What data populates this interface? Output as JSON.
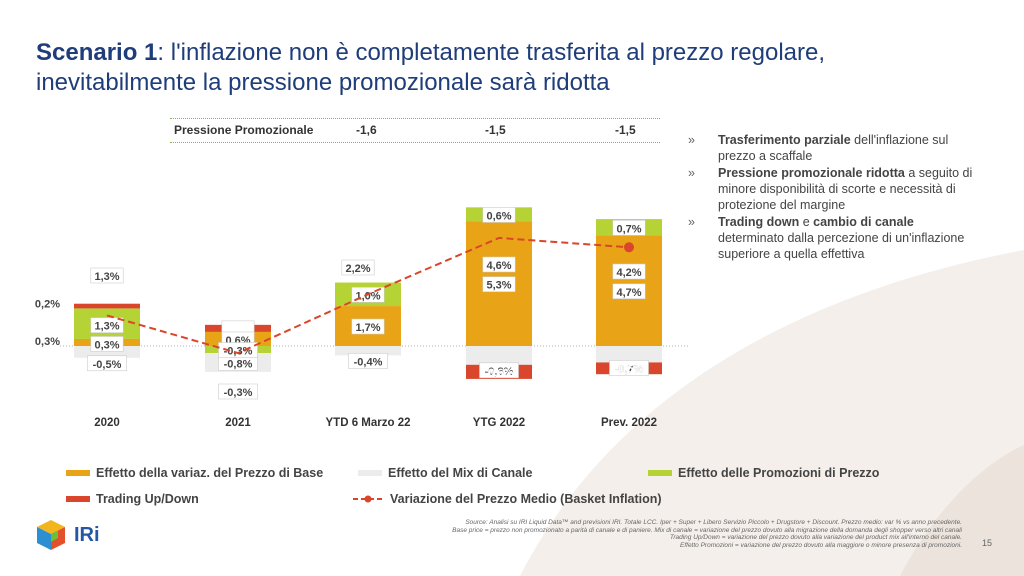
{
  "title": {
    "lead": "Scenario 1",
    "rest": ": l'inflazione non è completamente trasferita al prezzo regolare, inevitabilmente la pressione promozionale sarà ridotta"
  },
  "promo_pressure": {
    "label": "Pressione Promozionale",
    "values": [
      "-1,6",
      "-1,5",
      "-1,5"
    ]
  },
  "bullets": [
    {
      "bold": "Trasferimento parziale",
      "rest": " dell'inflazione sul prezzo a scaffale"
    },
    {
      "bold": "Pressione promozionale ridotta",
      "rest": " a seguito di minore disponibilità di scorte e necessità di protezione del margine"
    },
    {
      "bold": "Trading down",
      "rest_a": " e ",
      "bold2": "cambio di canale",
      "rest": " determinato dalla percezione di un'inflazione superiore a quella effettiva"
    }
  ],
  "bullet_mark": "»",
  "chart_data": {
    "type": "bar",
    "stacked": true,
    "categories": [
      "2020",
      "2021",
      "YTD 6 Marzo 22",
      "YTG 2022",
      "Prev. 2022"
    ],
    "series": [
      {
        "name": "Effetto della variaz. del Prezzo di Base",
        "color": "#e8a317",
        "values": [
          0.3,
          0.6,
          1.7,
          5.3,
          4.7
        ],
        "labels": [
          "0,3%",
          "0,6%",
          "1,7%",
          "5,3%",
          "4,7%"
        ]
      },
      {
        "name": "Effetto del Mix di Canale",
        "color": "#ececec",
        "values": [
          -0.5,
          -0.8,
          -0.4,
          -0.8,
          -0.7
        ],
        "labels": [
          "-0,5%",
          "-0,8%",
          "-0,4%",
          "-0,8%",
          "-0,7%"
        ]
      },
      {
        "name": "Effetto delle Promozioni di Prezzo",
        "color": "#b5d334",
        "values": [
          1.3,
          -0.3,
          1.0,
          0.6,
          0.7
        ],
        "labels": [
          "1,3%",
          "-0,3%",
          "1,0%",
          "0,6%",
          "0,7%"
        ]
      },
      {
        "name": "Trading Up/Down",
        "color": "#d9462b",
        "values": [
          0.2,
          0.3,
          0.0,
          -0.6,
          -0.5
        ],
        "labels": [
          "0,2%",
          "0,3%",
          "",
          "-0,6%",
          "-0,5%"
        ]
      }
    ],
    "line": {
      "name": "Variazione del Prezzo Medio (Basket Inflation)",
      "color": "#d9462b",
      "values": [
        1.3,
        -0.3,
        2.2,
        4.6,
        4.2
      ],
      "labels": [
        "1,3%",
        "-0,3%",
        "2,2%",
        "4,6%",
        "4,2%"
      ]
    },
    "ylim": [
      -1.8,
      7.2
    ]
  },
  "legend_order": [
    {
      "name": "Effetto della variaz. del Prezzo di Base",
      "kind": "bar",
      "color": "#e8a317"
    },
    {
      "name": "Effetto del Mix di Canale",
      "kind": "bar",
      "color": "#ececec"
    },
    {
      "name": "Effetto delle Promozioni di Prezzo",
      "kind": "bar",
      "color": "#b5d334"
    },
    {
      "name": "Trading Up/Down",
      "kind": "bar",
      "color": "#d9462b"
    },
    {
      "name": "Variazione del Prezzo Medio (Basket Inflation)",
      "kind": "line",
      "color": "#d9462b"
    }
  ],
  "footnote": [
    "Source: Analisi su IRI Liquid Data™ and previsioni IRI. Totale LCC. Iper + Super + Libero Servizio Piccolo + Drugstore + Discount. Prezzo medio: var % vs anno precedente.",
    "Base price = prezzo non promozionato a parità di canale e di paniere. Mix di canale = variazione del prezzo dovuto alla migrazione della domanda degli shopper verso altri canali",
    "Trading Up/Down = variazione del prezzo dovuto alla variazione del product mix all'interno del canale.",
    "Effetto Promozioni = variazione del prezzo dovuto alla maggiore o minore presenza di promozioni."
  ],
  "page_number": "15",
  "logo_text": "IRi"
}
